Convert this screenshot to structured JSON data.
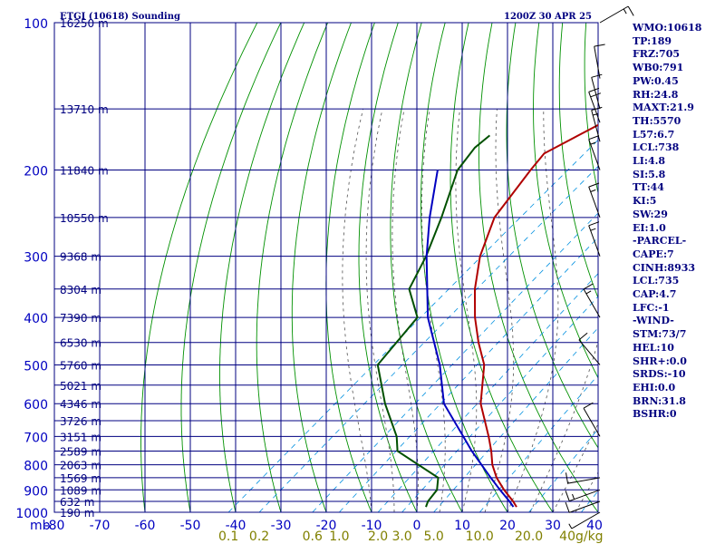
{
  "title_left": "ETGI (10618) Sounding",
  "title_right": "1200Z 30 APR 25",
  "colors": {
    "background": "#ffffff",
    "isobar": "#000080",
    "isotherm": "#000080",
    "temperature": "#b00000",
    "dewpoint": "#005000",
    "parcel": "#0000c0",
    "dry_adiabat": "#009000",
    "moist_adiabat": "#505050",
    "mixing_ratio": "#0090e0",
    "wind_barb": "#000000",
    "pressure_label": "#0000c0",
    "mixing_ratio_label": "#808000"
  },
  "chart_data": {
    "type": "line",
    "title": "ETGI (10618) Sounding",
    "valid_time": "1200Z 30 APR 25",
    "x_axis": {
      "label": "",
      "ticks": [
        "-80",
        "-70",
        "-60",
        "-50",
        "-40",
        "-30",
        "-20",
        "-10",
        "0",
        "10",
        "20",
        "30",
        "40"
      ],
      "range": [
        -80,
        40
      ],
      "skew": true
    },
    "y_axis": {
      "label": "mb",
      "ticks": [
        "100",
        "200",
        "300",
        "400",
        "500",
        "600",
        "700",
        "800",
        "900",
        "1000"
      ],
      "scale": "log",
      "range": [
        1000,
        100
      ]
    },
    "pressure_levels": [
      100,
      150,
      200,
      250,
      300,
      350,
      400,
      450,
      500,
      550,
      600,
      650,
      700,
      750,
      800,
      850,
      900,
      950,
      1000
    ],
    "height_labels": [
      {
        "p": 100,
        "text": "16250 m"
      },
      {
        "p": 150,
        "text": "13710 m"
      },
      {
        "p": 200,
        "text": "11840 m"
      },
      {
        "p": 250,
        "text": "10550 m"
      },
      {
        "p": 300,
        "text": "9368 m"
      },
      {
        "p": 350,
        "text": "8304 m"
      },
      {
        "p": 400,
        "text": "7390 m"
      },
      {
        "p": 450,
        "text": "6530 m"
      },
      {
        "p": 500,
        "text": "5760 m"
      },
      {
        "p": 550,
        "text": "5021 m"
      },
      {
        "p": 600,
        "text": "4346 m"
      },
      {
        "p": 650,
        "text": "3726 m"
      },
      {
        "p": 700,
        "text": "3151 m"
      },
      {
        "p": 750,
        "text": "2589 m"
      },
      {
        "p": 800,
        "text": "2063 m"
      },
      {
        "p": 850,
        "text": "1569 m"
      },
      {
        "p": 900,
        "text": "1089 m"
      },
      {
        "p": 950,
        "text": "632 m"
      },
      {
        "p": 1000,
        "text": "190 m"
      }
    ],
    "mixing_ratio_labels": [
      "0.1",
      "0.2",
      "0.6",
      "1.0",
      "2.0",
      "3.0",
      "5.0",
      "10.0",
      "20.0",
      "40g/kg"
    ],
    "mixing_ratio_values": [
      0.1,
      0.2,
      0.6,
      1.0,
      2.0,
      3.0,
      5.0,
      10.0,
      20.0,
      40.0
    ],
    "series": [
      {
        "name": "Temperature",
        "points": [
          {
            "p": 975,
            "t": 20.6
          },
          {
            "p": 950,
            "t": 18.4
          },
          {
            "p": 900,
            "t": 13.4
          },
          {
            "p": 850,
            "t": 8.6
          },
          {
            "p": 800,
            "t": 4.3
          },
          {
            "p": 750,
            "t": 0.5
          },
          {
            "p": 700,
            "t": -3.9
          },
          {
            "p": 600,
            "t": -14.2
          },
          {
            "p": 500,
            "t": -23.5
          },
          {
            "p": 450,
            "t": -30.6
          },
          {
            "p": 400,
            "t": -37.9
          },
          {
            "p": 350,
            "t": -45.3
          },
          {
            "p": 300,
            "t": -52.7
          },
          {
            "p": 250,
            "t": -59.6
          },
          {
            "p": 200,
            "t": -64.0
          },
          {
            "p": 185,
            "t": -65.3
          },
          {
            "p": 150,
            "t": -58.3
          },
          {
            "p": 140,
            "t": -58.2
          },
          {
            "p": 100,
            "t": -52.0
          }
        ]
      },
      {
        "name": "Dewpoint",
        "points": [
          {
            "p": 975,
            "t": 0.6
          },
          {
            "p": 950,
            "t": -0.4
          },
          {
            "p": 900,
            "t": -1.4
          },
          {
            "p": 850,
            "t": -4.3
          },
          {
            "p": 750,
            "t": -20.2
          },
          {
            "p": 700,
            "t": -24.2
          },
          {
            "p": 600,
            "t": -35.3
          },
          {
            "p": 500,
            "t": -47.0
          },
          {
            "p": 400,
            "t": -50.6
          },
          {
            "p": 350,
            "t": -59.8
          },
          {
            "p": 300,
            "t": -64.6
          },
          {
            "p": 250,
            "t": -71.3
          },
          {
            "p": 200,
            "t": -80.1
          },
          {
            "p": 180,
            "t": -82.1
          },
          {
            "p": 170,
            "t": -82.0
          }
        ]
      },
      {
        "name": "Parcel",
        "points": [
          {
            "p": 975,
            "t": 19.9
          },
          {
            "p": 950,
            "t": 17.6
          },
          {
            "p": 900,
            "t": 12.5
          },
          {
            "p": 850,
            "t": 7.3
          },
          {
            "p": 750,
            "t": -3.8
          },
          {
            "p": 700,
            "t": -9.5
          },
          {
            "p": 600,
            "t": -22.3
          },
          {
            "p": 500,
            "t": -33.3
          },
          {
            "p": 400,
            "t": -48.3
          },
          {
            "p": 300,
            "t": -64.5
          },
          {
            "p": 250,
            "t": -73.9
          },
          {
            "p": 200,
            "t": -84.5
          }
        ]
      }
    ],
    "wind_barbs": [
      {
        "p": 1000,
        "dir": 240,
        "kt": 5
      },
      {
        "p": 950,
        "dir": 250,
        "kt": 10
      },
      {
        "p": 900,
        "dir": 250,
        "kt": 15
      },
      {
        "p": 850,
        "dir": 260,
        "kt": 10
      },
      {
        "p": 700,
        "dir": 330,
        "kt": 10
      },
      {
        "p": 500,
        "dir": 320,
        "kt": 10
      },
      {
        "p": 400,
        "dir": 330,
        "kt": 15
      },
      {
        "p": 300,
        "dir": 340,
        "kt": 15
      },
      {
        "p": 250,
        "dir": 340,
        "kt": 15
      },
      {
        "p": 200,
        "dir": 340,
        "kt": 15
      },
      {
        "p": 175,
        "dir": 345,
        "kt": 15
      },
      {
        "p": 160,
        "dir": 340,
        "kt": 20
      },
      {
        "p": 150,
        "dir": 345,
        "kt": 10
      },
      {
        "p": 130,
        "dir": 350,
        "kt": 10
      },
      {
        "p": 100,
        "dir": 60,
        "kt": 15
      }
    ],
    "grid": true,
    "legend": "none"
  },
  "indices": [
    "WMO:10618",
    "TP:189",
    "FRZ:705",
    "WB0:791",
    "PW:0.45",
    "RH:24.8",
    "MAXT:21.9",
    "TH:5570",
    "L57:6.7",
    "LCL:738",
    "LI:4.8",
    "SI:5.8",
    "TT:44",
    "KI:5",
    "SW:29",
    "EI:1.0",
    "-PARCEL-",
    "CAPE:7",
    "CINH:8933",
    "LCL:735",
    "CAP:4.7",
    "LFC:-1",
    "-WIND-",
    "STM:73/7",
    "HEL:10",
    "SHR+:0.0",
    "SRDS:-10",
    "EHI:0.0",
    "BRN:31.8",
    "BSHR:0"
  ]
}
